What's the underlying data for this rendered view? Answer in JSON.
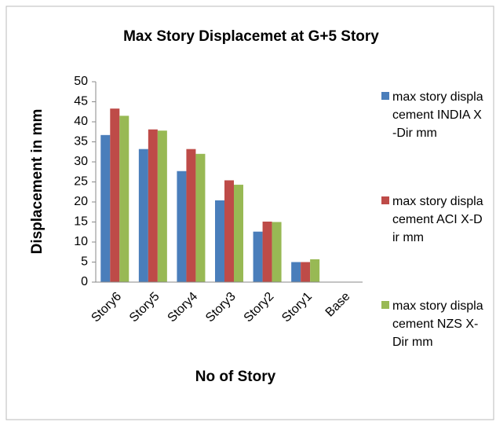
{
  "chart_data": {
    "type": "bar",
    "title": "Max Story Displacemet at G+5 Story",
    "x_label": "No of Story",
    "y_label": "Displacement in mm",
    "categories": [
      "Story6",
      "Story5",
      "Story4",
      "Story3",
      "Story2",
      "Story1",
      "Base"
    ],
    "series": [
      {
        "name": "max story displacement INDIA X-Dir mm",
        "color": "#4a7ebb",
        "values": [
          36.7,
          33.2,
          27.7,
          20.4,
          12.6,
          5,
          0
        ]
      },
      {
        "name": "max story displacement ACI X-Dir mm",
        "color": "#be4b48",
        "values": [
          43.3,
          38.1,
          33.2,
          25.4,
          15.1,
          5,
          0
        ]
      },
      {
        "name": "max story displacement NZS X-Dir mm",
        "color": "#98b954",
        "values": [
          41.5,
          37.8,
          32,
          24.3,
          15,
          5.7,
          0
        ]
      }
    ],
    "ylim": [
      0,
      50
    ],
    "yticks": [
      0,
      5,
      10,
      15,
      20,
      25,
      30,
      35,
      40,
      45,
      50
    ],
    "grid": false,
    "legend": "right"
  }
}
